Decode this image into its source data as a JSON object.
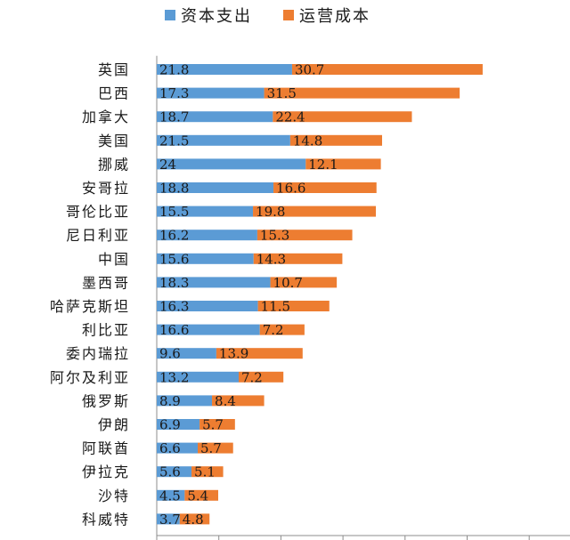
{
  "chart_data": {
    "type": "bar",
    "orientation": "horizontal",
    "stacked": true,
    "categories": [
      "英国",
      "巴西",
      "加拿大",
      "美国",
      "挪威",
      "安哥拉",
      "哥伦比亚",
      "尼日利亚",
      "中国",
      "墨西哥",
      "哈萨克斯坦",
      "利比亚",
      "委内瑞拉",
      "阿尔及利亚",
      "俄罗斯",
      "伊朗",
      "阿联酋",
      "伊拉克",
      "沙特",
      "科威特"
    ],
    "series": [
      {
        "name": "资本支出",
        "color": "#5b9bd5",
        "values": [
          21.8,
          17.3,
          18.7,
          21.5,
          24,
          18.8,
          15.5,
          16.2,
          15.6,
          18.3,
          16.3,
          16.6,
          9.6,
          13.2,
          8.9,
          6.9,
          6.6,
          5.6,
          4.5,
          3.7
        ],
        "labels": [
          "21.8",
          "17.3",
          "18.7",
          "21.5",
          "24",
          "18.8",
          "15.5",
          "16.2",
          "15.6",
          "18.3",
          "16.3",
          "16.6",
          "9.6",
          "13.2",
          "8.9",
          "6.9",
          "6.6",
          "5.6",
          "4.5",
          "3.7"
        ]
      },
      {
        "name": "运营成本",
        "color": "#ed7d31",
        "values": [
          30.7,
          31.5,
          22.4,
          14.8,
          12.1,
          16.6,
          19.8,
          15.3,
          14.3,
          10.7,
          11.5,
          7.2,
          13.9,
          7.2,
          8.4,
          5.7,
          5.7,
          5.1,
          5.4,
          4.8
        ],
        "labels": [
          "30.7",
          "31.5",
          "22.4",
          "14.8",
          "12.1",
          "16.6",
          "19.8",
          "15.3",
          "14.3",
          "10.7",
          "11.5",
          "7.2",
          "13.9",
          "7.2",
          "8.4",
          "5.7",
          "5.7",
          "5.1",
          "5.4",
          "4.8"
        ]
      }
    ],
    "xlim": [
      0,
      60
    ],
    "legend_position": "top",
    "grid": false
  }
}
